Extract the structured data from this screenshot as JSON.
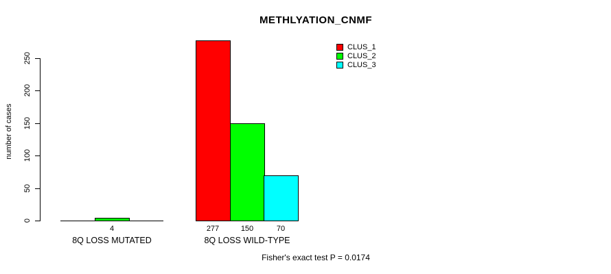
{
  "chart_data": {
    "type": "bar",
    "title": "METHLYATION_CNMF",
    "ylabel": "number of cases",
    "xlabel": "",
    "categories": [
      "8Q LOSS MUTATED",
      "8Q LOSS WILD-TYPE"
    ],
    "series": [
      {
        "name": "CLUS_1",
        "color": "#ff0000",
        "values": [
          0,
          277
        ]
      },
      {
        "name": "CLUS_2",
        "color": "#00ff00",
        "values": [
          4,
          150
        ]
      },
      {
        "name": "CLUS_3",
        "color": "#00ffff",
        "values": [
          0,
          70
        ]
      }
    ],
    "bar_value_labels": [
      [
        "",
        "4",
        ""
      ],
      [
        "277",
        "150",
        "70"
      ]
    ],
    "yticks": [
      0,
      50,
      100,
      150,
      200,
      250
    ],
    "ylim": [
      0,
      290
    ],
    "grid": false,
    "legend": {
      "position": "top-right",
      "entries": [
        "CLUS_1",
        "CLUS_2",
        "CLUS_3"
      ]
    },
    "annotation": "Fisher's exact test P = 0.0174",
    "axis_color": "#000000",
    "bar_border_color": "#000000"
  }
}
